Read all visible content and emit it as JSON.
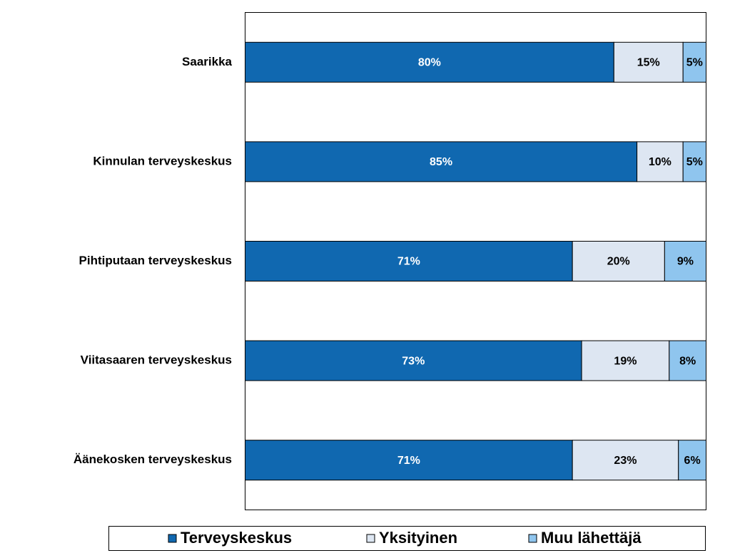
{
  "chart_data": {
    "type": "stacked-bar-horizontal",
    "categories": [
      "Saarikka",
      "Kinnulan terveyskeskus",
      "Pihtiputaan terveyskeskus",
      "Viitasaaren terveyskeskus",
      "Äänekosken terveyskeskus"
    ],
    "series": [
      {
        "name": "Terveyskeskus",
        "color": "#1068b0",
        "values": [
          80,
          85,
          71,
          73,
          71
        ],
        "value_labels": [
          "80%",
          "85%",
          "71%",
          "73%",
          "71%"
        ]
      },
      {
        "name": "Yksityinen",
        "color": "#dde6f2",
        "values": [
          15,
          10,
          20,
          19,
          23
        ],
        "value_labels": [
          "15%",
          "10%",
          "20%",
          "19%",
          "23%"
        ]
      },
      {
        "name": "Muu lähettäjä",
        "color": "#8fc5ee",
        "values": [
          5,
          5,
          9,
          8,
          6
        ],
        "value_labels": [
          "5%",
          "5%",
          "9%",
          "8%",
          "6%"
        ]
      }
    ],
    "xlim": [
      0,
      100
    ],
    "legend": "bottom"
  }
}
